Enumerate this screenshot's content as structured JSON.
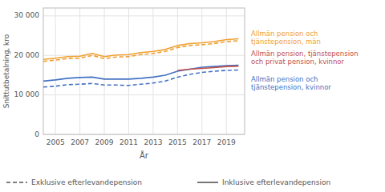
{
  "chart_data": {
    "type": "line",
    "x": [
      2004,
      2005,
      2006,
      2007,
      2008,
      2009,
      2010,
      2011,
      2012,
      2013,
      2014,
      2015,
      2016,
      2017,
      2018,
      2019,
      2020
    ],
    "series": [
      {
        "color": "#f0a030",
        "line_style": "solid",
        "values": [
          19000,
          19300,
          19700,
          19800,
          20500,
          19700,
          20100,
          20200,
          20700,
          21000,
          21500,
          22500,
          23000,
          23200,
          23500,
          24000,
          24200
        ]
      },
      {
        "color": "#f0a030",
        "line_style": "dashed",
        "values": [
          18500,
          18800,
          19200,
          19300,
          20000,
          19200,
          19600,
          19700,
          20200,
          20500,
          21000,
          22000,
          22500,
          22700,
          23000,
          23500,
          23700
        ]
      },
      {
        "color": "#4472c4",
        "line_style": "solid",
        "values": [
          13500,
          13800,
          14200,
          14400,
          14500,
          14000,
          14000,
          14000,
          14200,
          14500,
          15000,
          16000,
          16500,
          17000,
          17200,
          17400,
          17500
        ]
      },
      {
        "color": "#4472c4",
        "line_style": "dashed",
        "values": [
          12000,
          12200,
          12600,
          12700,
          12900,
          12500,
          12500,
          12400,
          12700,
          13000,
          13500,
          14500,
          15200,
          15700,
          16000,
          16200,
          16300
        ]
      },
      {
        "color": "#c0504d",
        "line_style": "solid",
        "values": [
          null,
          null,
          null,
          null,
          null,
          null,
          null,
          null,
          null,
          null,
          null,
          16200,
          16500,
          16700,
          16900,
          17200,
          17300
        ]
      }
    ],
    "x_label": "År",
    "y_label": "Snittutbetalning, kro",
    "xlim": [
      2004,
      2020.5
    ],
    "xticks": [
      2005,
      2007,
      2009,
      2011,
      2013,
      2015,
      2017,
      2019
    ],
    "ylim": [
      0,
      32000
    ],
    "yticks": [
      0,
      {
        "value": 10000,
        "label": "10 000"
      },
      {
        "value": 20000,
        "label": "20 000"
      },
      {
        "value": 30000,
        "label": "30 000"
      }
    ],
    "grid": true,
    "annotations": [
      {
        "text": "Allmän pension och\ntjänstepension, män",
        "color": "#f0a030"
      },
      {
        "text": "Allmän pension, tjänstepension\noch privat pension, kvinnor",
        "color": "#c0504d"
      },
      {
        "text": "Allmän pension och\ntjänstepension, kvinnor",
        "color": "#4472c4"
      },
      {
        "text": "Exklusive efterlevandepension",
        "line_style": "dashed"
      },
      {
        "text": "Inklusive efterlevandepension",
        "line_style": "solid"
      }
    ]
  }
}
